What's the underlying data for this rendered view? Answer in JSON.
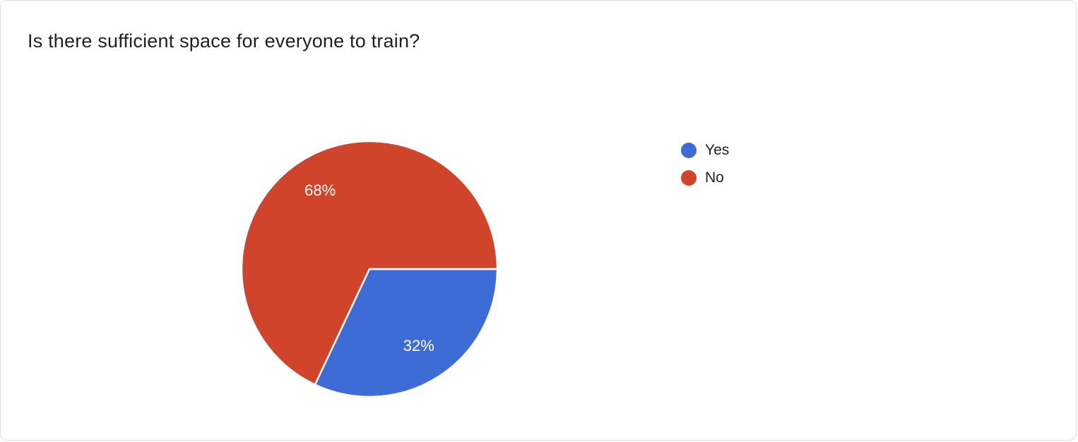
{
  "chart_data": {
    "type": "pie",
    "title": "Is there sufficient space for everyone to train?",
    "slices": [
      {
        "label": "Yes",
        "value": 32,
        "percent_label": "32%",
        "color": "#3d6cd7"
      },
      {
        "label": "No",
        "value": 68,
        "percent_label": "68%",
        "color": "#d0442c"
      }
    ],
    "start_angle": "3-oclock",
    "direction": "clockwise",
    "legend_position": "right",
    "slice_text_color": "#ffffff",
    "title_color": "#202124",
    "slice_border_color": "#ffffff"
  }
}
